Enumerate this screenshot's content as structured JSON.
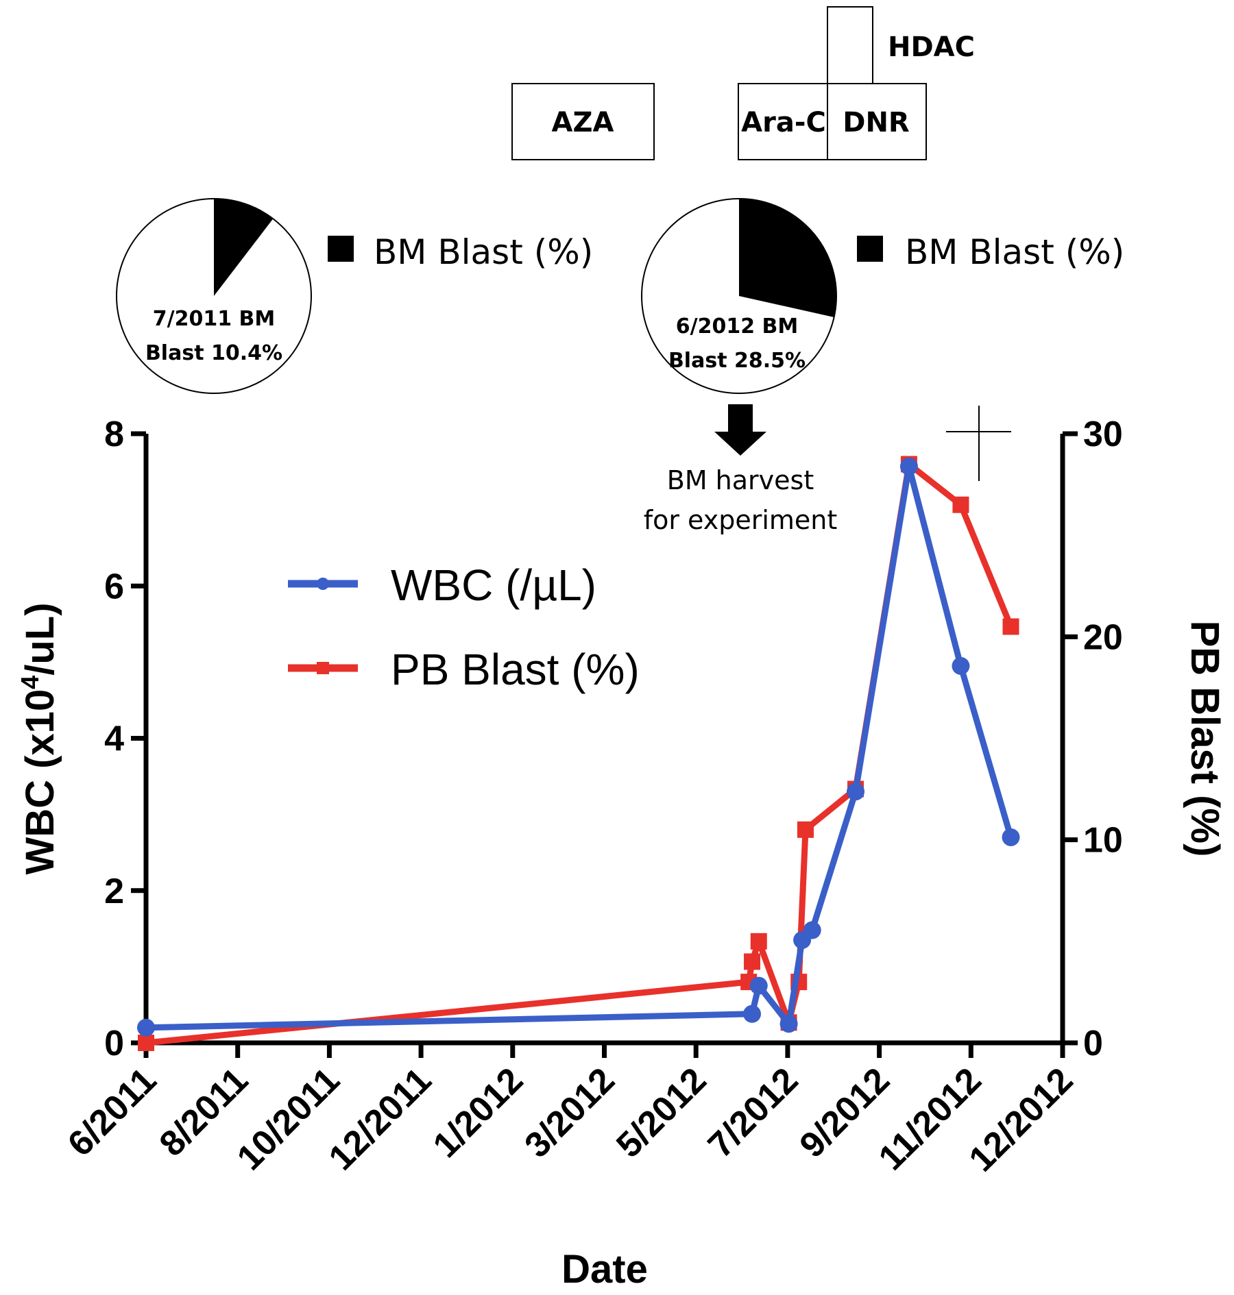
{
  "chart_data": {
    "type": "line",
    "xlabel": "Date",
    "ylabel_left": "WBC (x10⁴/uL)",
    "ylabel_right": "PB Blast (%)",
    "ylim_left": [
      0,
      8
    ],
    "ylim_right": [
      0,
      30
    ],
    "yticks_left": [
      "0",
      "2",
      "4",
      "6",
      "8"
    ],
    "yticks_right": [
      "0",
      "10",
      "20",
      "30"
    ],
    "x_ticks": [
      "6/2011",
      "8/2011",
      "10/2011",
      "12/2011",
      "1/2012",
      "3/2012",
      "5/2012",
      "7/2012",
      "9/2012",
      "11/2012",
      "12/2012"
    ],
    "x_range": [
      "6/2011",
      "12/2012"
    ],
    "legend": [
      "WBC (/µL)",
      "PB Blast (%)"
    ],
    "series": [
      {
        "name": "WBC (/µL)",
        "axis": "left",
        "color": "#3a5fc8",
        "marker": "circle",
        "x": [
          "2011-06-01",
          "2012-05-29",
          "2012-06-02",
          "2012-06-20",
          "2012-06-28",
          "2012-07-04",
          "2012-07-30",
          "2012-08-31",
          "2012-10-01",
          "2012-10-31"
        ],
        "y": [
          0.2,
          0.38,
          0.75,
          0.25,
          1.35,
          1.48,
          3.3,
          7.57,
          4.95,
          2.7
        ]
      },
      {
        "name": "PB Blast (%)",
        "axis": "right",
        "color": "#e8312a",
        "marker": "square",
        "x": [
          "2011-06-01",
          "2012-05-27",
          "2012-05-29",
          "2012-06-02",
          "2012-06-20",
          "2012-06-26",
          "2012-06-30",
          "2012-07-30",
          "2012-08-31",
          "2012-10-01",
          "2012-10-31"
        ],
        "y": [
          0,
          3.0,
          4.0,
          5.0,
          1.0,
          3.0,
          10.5,
          12.5,
          28.5,
          26.5,
          20.5
        ]
      }
    ]
  },
  "treatments": {
    "aza": "AZA",
    "arac": "Ara-C",
    "dnr": "DNR",
    "hdac": "HDAC"
  },
  "pies": [
    {
      "line1": "7/2011 BM",
      "line2": "Blast 10.4%",
      "value": 10.4,
      "legend": "BM Blast (%)"
    },
    {
      "line1": "6/2012 BM",
      "line2": "Blast 28.5%",
      "value": 28.5,
      "legend": "BM Blast (%)"
    }
  ],
  "annotation": {
    "line1": "BM harvest",
    "line2": "for experiment"
  }
}
